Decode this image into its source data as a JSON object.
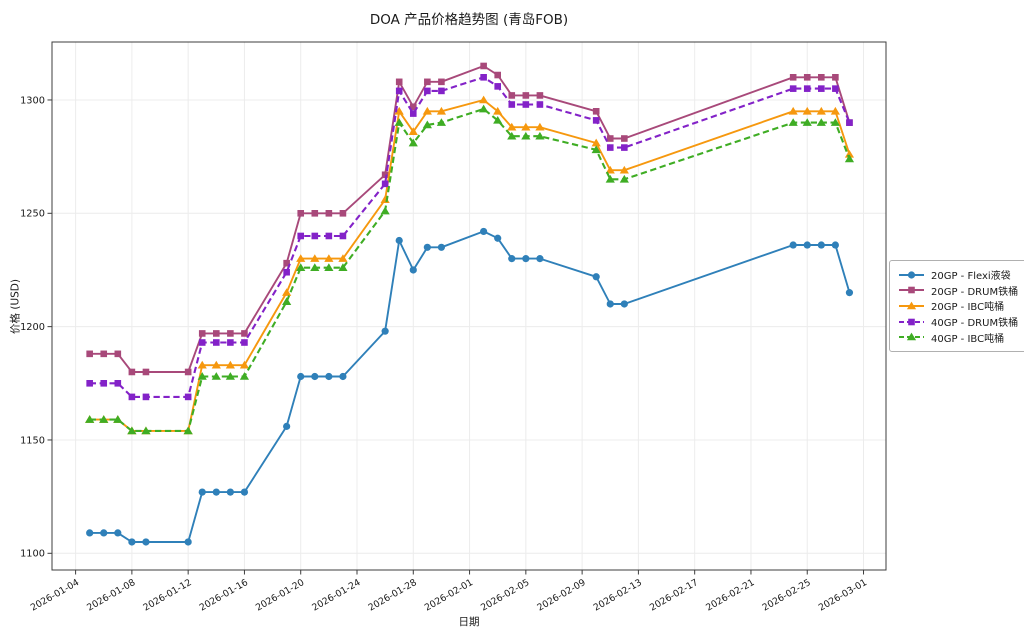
{
  "chart_data": {
    "type": "line",
    "title": "DOA 产品价格趋势图 (青岛FOB)",
    "xlabel": "日期",
    "ylabel": "价格 (USD)",
    "grid": true,
    "legend_position": "outside-right",
    "ylim": [
      1092,
      1326
    ],
    "yticks": [
      1100,
      1150,
      1200,
      1250,
      1300
    ],
    "xticks": [
      "2026-01-04",
      "2026-01-08",
      "2026-01-12",
      "2026-01-16",
      "2026-01-20",
      "2026-01-24",
      "2026-01-28",
      "2026-02-01",
      "2026-02-05",
      "2026-02-09",
      "2026-02-13",
      "2026-02-17",
      "2026-02-21",
      "2026-02-25",
      "2026-03-01"
    ],
    "x": [
      "2026-01-05",
      "2026-01-06",
      "2026-01-07",
      "2026-01-08",
      "2026-01-09",
      "2026-01-12",
      "2026-01-13",
      "2026-01-14",
      "2026-01-15",
      "2026-01-16",
      "2026-01-19",
      "2026-01-20",
      "2026-01-21",
      "2026-01-22",
      "2026-01-23",
      "2026-01-26",
      "2026-01-27",
      "2026-01-28",
      "2026-01-29",
      "2026-01-30",
      "2026-02-02",
      "2026-02-03",
      "2026-02-04",
      "2026-02-05",
      "2026-02-06",
      "2026-02-10",
      "2026-02-11",
      "2026-02-12",
      "2026-02-24",
      "2026-02-25",
      "2026-02-26",
      "2026-02-27",
      "2026-02-28"
    ],
    "series": [
      {
        "name": "20GP - Flexi液袋",
        "color": "#2f80b9",
        "line_style": "solid",
        "marker": "circle",
        "values": [
          1109,
          1109,
          1109,
          1105,
          1105,
          1105,
          1127,
          1127,
          1127,
          1127,
          1156,
          1178,
          1178,
          1178,
          1178,
          1198,
          1238,
          1225,
          1235,
          1235,
          1242,
          1239,
          1230,
          1230,
          1230,
          1222,
          1210,
          1210,
          1236,
          1236,
          1236,
          1236,
          1215
        ]
      },
      {
        "name": "20GP - DRUM铁桶",
        "color": "#a8497a",
        "line_style": "solid",
        "marker": "square",
        "values": [
          1188,
          1188,
          1188,
          1180,
          1180,
          1180,
          1197,
          1197,
          1197,
          1197,
          1228,
          1250,
          1250,
          1250,
          1250,
          1267,
          1308,
          1297,
          1308,
          1308,
          1315,
          1311,
          1302,
          1302,
          1302,
          1295,
          1283,
          1283,
          1310,
          1310,
          1310,
          1310,
          1290
        ]
      },
      {
        "name": "20GP - IBC吨桶",
        "color": "#f6980e",
        "line_style": "solid",
        "marker": "triangle",
        "values": [
          1159,
          1159,
          1159,
          1154,
          1154,
          1154,
          1183,
          1183,
          1183,
          1183,
          1215,
          1230,
          1230,
          1230,
          1230,
          1256,
          1295,
          1286,
          1295,
          1295,
          1300,
          1295,
          1288,
          1288,
          1288,
          1281,
          1269,
          1269,
          1295,
          1295,
          1295,
          1295,
          1276
        ]
      },
      {
        "name": "40GP - DRUM铁桶",
        "color": "#8322c8",
        "line_style": "dashed",
        "marker": "square",
        "values": [
          1175,
          1175,
          1175,
          1169,
          1169,
          1169,
          1193,
          1193,
          1193,
          1193,
          1224,
          1240,
          1240,
          1240,
          1240,
          1263,
          1304,
          1294,
          1304,
          1304,
          1310,
          1306,
          1298,
          1298,
          1298,
          1291,
          1279,
          1279,
          1305,
          1305,
          1305,
          1305,
          1290
        ]
      },
      {
        "name": "40GP - IBC吨桶",
        "color": "#3fad24",
        "line_style": "dashed",
        "marker": "triangle",
        "values": [
          1159,
          1159,
          1159,
          1154,
          1154,
          1154,
          1178,
          1178,
          1178,
          1178,
          1211,
          1226,
          1226,
          1226,
          1226,
          1251,
          1290,
          1281,
          1289,
          1290,
          1296,
          1291,
          1284,
          1284,
          1284,
          1278,
          1265,
          1265,
          1290,
          1290,
          1290,
          1290,
          1274
        ]
      }
    ]
  }
}
